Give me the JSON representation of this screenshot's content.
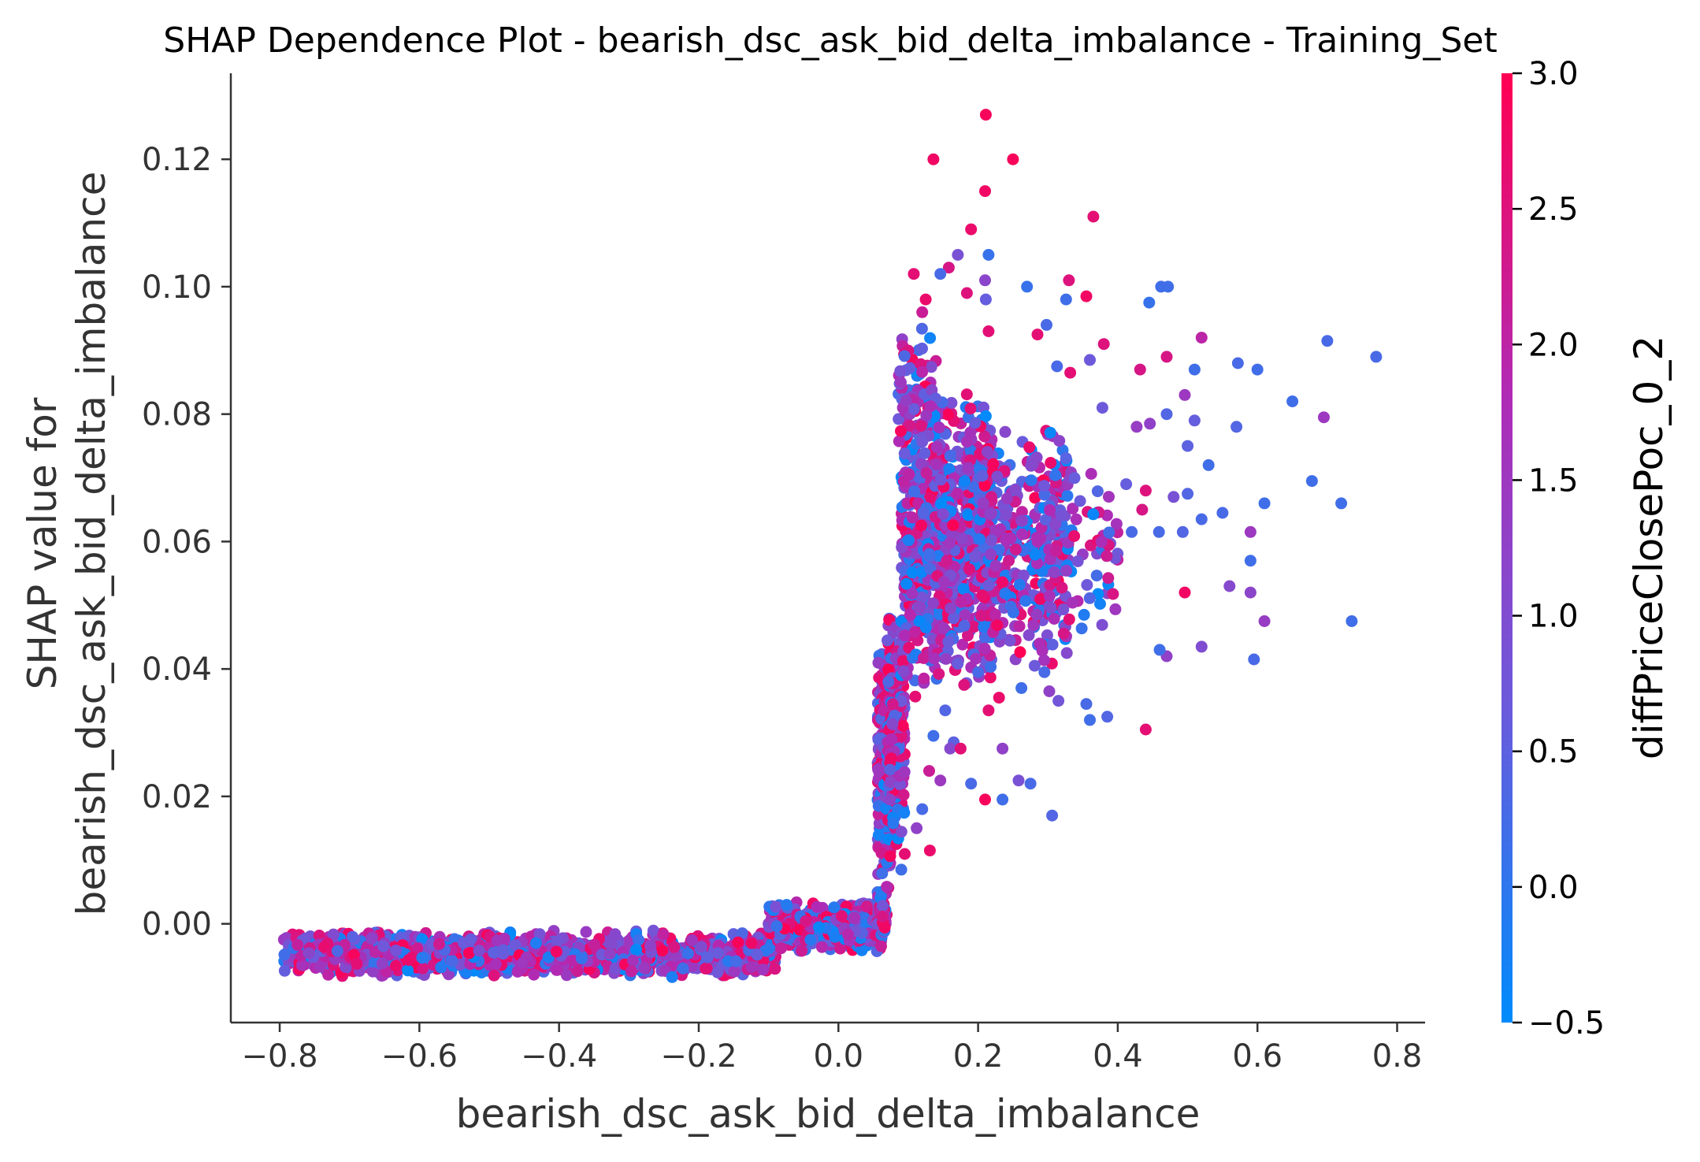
{
  "chart_data": {
    "type": "scatter",
    "title": "SHAP Dependence Plot - bearish_dsc_ask_bid_delta_imbalance - Training_Set",
    "xlabel": "bearish_dsc_ask_bid_delta_imbalance",
    "ylabel_line1": "SHAP value for",
    "ylabel_line2": "bearish_dsc_ask_bid_delta_imbalance",
    "xlim": [
      -0.87,
      0.84
    ],
    "ylim": [
      -0.0155,
      0.1335
    ],
    "x_ticks": [
      -0.8,
      -0.6,
      -0.4,
      -0.2,
      0.0,
      0.2,
      0.4,
      0.6,
      0.8
    ],
    "x_tick_labels": [
      "−0.8",
      "−0.6",
      "−0.4",
      "−0.2",
      "0.0",
      "0.2",
      "0.4",
      "0.6",
      "0.8"
    ],
    "y_ticks": [
      0.0,
      0.02,
      0.04,
      0.06,
      0.08,
      0.1,
      0.12
    ],
    "y_tick_labels": [
      "0.00",
      "0.02",
      "0.04",
      "0.06",
      "0.08",
      "0.10",
      "0.12"
    ],
    "grid": false,
    "colorbar": {
      "label": "diffPriceClosePoc_0_2",
      "min": -0.5,
      "max": 3.0,
      "ticks": [
        -0.5,
        0.0,
        0.5,
        1.0,
        1.5,
        2.0,
        2.5,
        3.0
      ],
      "tick_labels": [
        "−0.5",
        "0.0",
        "0.5",
        "1.0",
        "1.5",
        "2.0",
        "2.5",
        "3.0"
      ],
      "colors": [
        "#008bfb",
        "#6b5bdc",
        "#b02bb5",
        "#ff0052"
      ]
    },
    "points": [
      [
        0.211,
        0.127,
        2.9
      ],
      [
        0.136,
        0.12,
        2.8
      ],
      [
        0.25,
        0.12,
        2.9
      ],
      [
        0.21,
        0.115,
        2.8
      ],
      [
        0.19,
        0.109,
        2.7
      ],
      [
        0.365,
        0.111,
        2.6
      ],
      [
        0.171,
        0.105,
        0.9
      ],
      [
        0.215,
        0.105,
        0.1
      ],
      [
        0.108,
        0.102,
        2.6
      ],
      [
        0.158,
        0.103,
        2.4
      ],
      [
        0.146,
        0.102,
        0.3
      ],
      [
        0.21,
        0.101,
        1.2
      ],
      [
        0.27,
        0.1,
        0.1
      ],
      [
        0.33,
        0.101,
        2.5
      ],
      [
        0.462,
        0.1,
        0.2
      ],
      [
        0.472,
        0.1,
        0.2
      ],
      [
        0.445,
        0.0975,
        0.1
      ],
      [
        0.355,
        0.0985,
        2.8
      ],
      [
        0.326,
        0.098,
        0.2
      ],
      [
        0.211,
        0.098,
        0.6
      ],
      [
        0.184,
        0.099,
        2.5
      ],
      [
        0.125,
        0.098,
        2.7
      ],
      [
        0.12,
        0.096,
        2.2
      ],
      [
        0.215,
        0.093,
        2.6
      ],
      [
        0.298,
        0.094,
        0.3
      ],
      [
        0.285,
        0.0925,
        2.6
      ],
      [
        0.52,
        0.092,
        2.0
      ],
      [
        0.7,
        0.0915,
        0.3
      ],
      [
        0.77,
        0.089,
        0.3
      ],
      [
        0.38,
        0.091,
        2.5
      ],
      [
        0.47,
        0.089,
        2.4
      ],
      [
        0.572,
        0.088,
        0.3
      ],
      [
        0.6,
        0.087,
        0.2
      ],
      [
        0.51,
        0.087,
        0.2
      ],
      [
        0.432,
        0.087,
        2.4
      ],
      [
        0.36,
        0.0885,
        0.7
      ],
      [
        0.332,
        0.0865,
        2.6
      ],
      [
        0.313,
        0.0875,
        0.3
      ],
      [
        0.65,
        0.082,
        0.2
      ],
      [
        0.496,
        0.083,
        1.5
      ],
      [
        0.695,
        0.0795,
        1.5
      ],
      [
        0.57,
        0.078,
        0.4
      ],
      [
        0.51,
        0.079,
        0.6
      ],
      [
        0.47,
        0.08,
        0.4
      ],
      [
        0.427,
        0.078,
        1.4
      ],
      [
        0.446,
        0.0785,
        1.3
      ],
      [
        0.378,
        0.081,
        0.7
      ],
      [
        0.5,
        0.075,
        0.5
      ],
      [
        0.53,
        0.072,
        0.2
      ],
      [
        0.678,
        0.0695,
        0.2
      ],
      [
        0.72,
        0.066,
        0.2
      ],
      [
        0.61,
        0.066,
        0.2
      ],
      [
        0.55,
        0.0645,
        0.3
      ],
      [
        0.52,
        0.0635,
        0.3
      ],
      [
        0.59,
        0.0615,
        1.5
      ],
      [
        0.5,
        0.0675,
        0.4
      ],
      [
        0.44,
        0.068,
        2.5
      ],
      [
        0.48,
        0.067,
        0.9
      ],
      [
        0.435,
        0.065,
        2.4
      ],
      [
        0.412,
        0.069,
        0.6
      ],
      [
        0.42,
        0.0615,
        0.3
      ],
      [
        0.459,
        0.0615,
        0.3
      ],
      [
        0.493,
        0.0615,
        0.4
      ],
      [
        0.59,
        0.057,
        0.2
      ],
      [
        0.735,
        0.0475,
        0.2
      ],
      [
        0.52,
        0.0435,
        1.0
      ],
      [
        0.595,
        0.0415,
        0.3
      ],
      [
        0.61,
        0.0475,
        1.4
      ],
      [
        0.59,
        0.052,
        1.2
      ],
      [
        0.56,
        0.053,
        1.1
      ],
      [
        0.496,
        0.052,
        2.8
      ],
      [
        0.47,
        0.042,
        1.3
      ],
      [
        0.46,
        0.043,
        0.2
      ],
      [
        0.44,
        0.0305,
        2.6
      ],
      [
        0.385,
        0.0325,
        0.4
      ],
      [
        0.36,
        0.032,
        0.2
      ],
      [
        0.355,
        0.0345,
        0.3
      ],
      [
        0.315,
        0.035,
        0.8
      ],
      [
        0.327,
        0.0425,
        1.1
      ],
      [
        0.302,
        0.0365,
        1.3
      ],
      [
        0.306,
        0.017,
        0.4
      ],
      [
        0.275,
        0.022,
        0.3
      ],
      [
        0.258,
        0.0225,
        0.9
      ],
      [
        0.235,
        0.0195,
        0.2
      ],
      [
        0.21,
        0.0195,
        2.9
      ],
      [
        0.19,
        0.022,
        0.3
      ],
      [
        0.235,
        0.0275,
        1.3
      ],
      [
        0.23,
        0.0355,
        2.7
      ],
      [
        0.295,
        0.0395,
        0.3
      ],
      [
        0.281,
        0.0405,
        0.7
      ],
      [
        0.262,
        0.037,
        0.2
      ],
      [
        0.215,
        0.0335,
        2.6
      ],
      [
        0.2,
        0.0395,
        0.3
      ],
      [
        0.18,
        0.0375,
        2.5
      ],
      [
        0.153,
        0.0335,
        0.4
      ],
      [
        0.136,
        0.0295,
        0.2
      ],
      [
        0.165,
        0.0285,
        0.5
      ],
      [
        0.16,
        0.0275,
        1.1
      ],
      [
        0.175,
        0.0275,
        2.6
      ],
      [
        0.146,
        0.0225,
        1.5
      ],
      [
        0.13,
        0.024,
        2.2
      ],
      [
        0.12,
        0.018,
        0.3
      ],
      [
        0.112,
        0.015,
        1.3
      ],
      [
        0.131,
        0.0115,
        2.7
      ],
      [
        0.09,
        0.0085,
        0.2
      ]
    ],
    "clusters": [
      {
        "xr": [
          -0.795,
          -0.09
        ],
        "yr": [
          -0.0085,
          -0.001
        ],
        "n": 1300
      },
      {
        "xr": [
          -0.1,
          0.065
        ],
        "yr": [
          -0.0045,
          0.0035
        ],
        "n": 600
      },
      {
        "xr": [
          0.055,
          0.07
        ],
        "yr": [
          -0.002,
          0.006
        ],
        "n": 40
      },
      {
        "xr": [
          0.056,
          0.075
        ],
        "yr": [
          0.005,
          0.045
        ],
        "n": 260
      },
      {
        "xr": [
          0.07,
          0.095
        ],
        "yr": [
          0.01,
          0.05
        ],
        "n": 200
      },
      {
        "xr": [
          0.09,
          0.22
        ],
        "yr": [
          0.035,
          0.085
        ],
        "n": 850
      },
      {
        "xr": [
          0.2,
          0.33
        ],
        "yr": [
          0.04,
          0.08
        ],
        "n": 360
      },
      {
        "xr": [
          0.3,
          0.4
        ],
        "yr": [
          0.045,
          0.075
        ],
        "n": 70
      },
      {
        "xr": [
          0.085,
          0.14
        ],
        "yr": [
          0.075,
          0.095
        ],
        "n": 60
      }
    ]
  }
}
